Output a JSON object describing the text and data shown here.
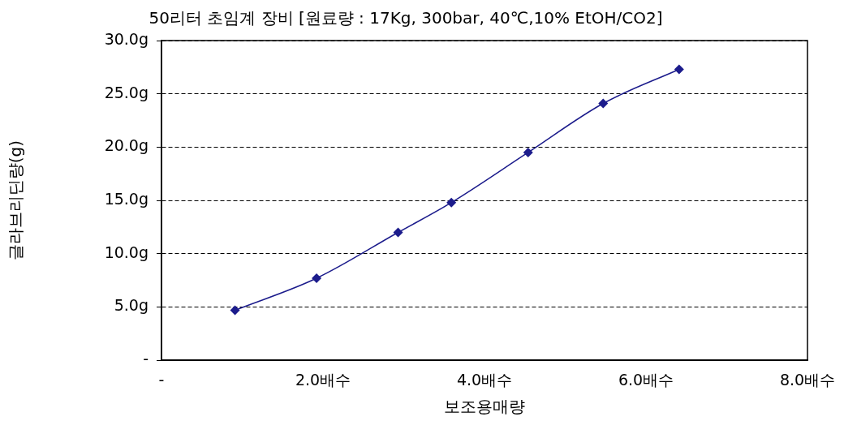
{
  "chart_data": {
    "type": "line",
    "title": "50리터 초임계 장비 [원료량 : 17Kg, 300bar, 40℃,10% EtOH/CO2]",
    "xlabel": "보조용매량",
    "ylabel": "글라브리딘량(g)",
    "x": [
      0.91,
      1.92,
      2.93,
      3.59,
      4.54,
      5.47,
      6.41
    ],
    "series": [
      {
        "color": "#1c1c8c",
        "values": [
          4.7,
          7.7,
          12.0,
          14.8,
          19.5,
          24.1,
          27.3
        ]
      }
    ],
    "xlim": [
      0,
      8
    ],
    "xticks": [
      {
        "value": 0,
        "label": "-"
      },
      {
        "value": 2,
        "label": "2.0배수"
      },
      {
        "value": 4,
        "label": "4.0배수"
      },
      {
        "value": 6,
        "label": "6.0배수"
      },
      {
        "value": 8,
        "label": "8.0배수"
      }
    ],
    "ylim": [
      0,
      30
    ],
    "yticks": [
      {
        "value": 0,
        "label": "-"
      },
      {
        "value": 5,
        "label": "5.0g"
      },
      {
        "value": 10,
        "label": "10.0g"
      },
      {
        "value": 15,
        "label": "15.0g"
      },
      {
        "value": 20,
        "label": "20.0g"
      },
      {
        "value": 25,
        "label": "25.0g"
      },
      {
        "value": 30,
        "label": "30.0g"
      }
    ],
    "grid": "y",
    "marker": "diamond",
    "line_style": "solid",
    "legend": false
  }
}
